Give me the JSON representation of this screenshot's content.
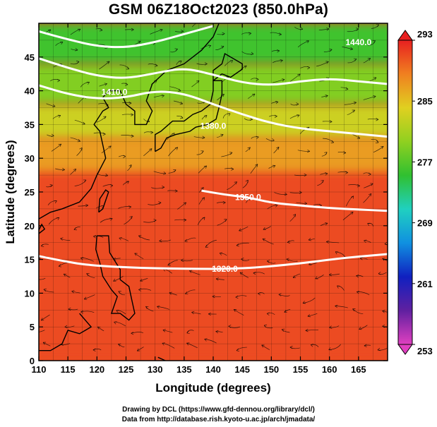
{
  "title": "GSM 06Z18Oct2023 (850.0hPa)",
  "credits": {
    "line1": "Drawing by DCL (https://www.gfd-dennou.org/library/dcl/)",
    "line2": "Data from http://database.rish.kyoto-u.ac.jp/arch/jmadata/"
  },
  "chart_data": {
    "type": "heatmap",
    "xlabel": "Longitude (degrees)",
    "ylabel": "Latitude  (degrees)",
    "xlim": [
      110,
      170
    ],
    "ylim": [
      0,
      50
    ],
    "x_ticks": [
      "110",
      "115",
      "120",
      "125",
      "130",
      "135",
      "140",
      "145",
      "150",
      "155",
      "160",
      "165"
    ],
    "y_ticks": [
      "0",
      "5",
      "10",
      "15",
      "20",
      "25",
      "30",
      "35",
      "40",
      "45"
    ],
    "colorbar": {
      "min": 253,
      "max": 293,
      "tick_labels": [
        "253",
        "261",
        "269",
        "277",
        "285",
        "293"
      ],
      "colors": [
        "#e040c0",
        "#6020a0",
        "#1020c0",
        "#1090e0",
        "#20d0c0",
        "#30c030",
        "#90d020",
        "#e0d020",
        "#f08020",
        "#e82020"
      ]
    },
    "temperature_bands": [
      {
        "lat_from": 0,
        "lat_to": 28,
        "value_k": 291
      },
      {
        "lat_from": 28,
        "lat_to": 33,
        "value_k": 287
      },
      {
        "lat_from": 33,
        "lat_to": 38,
        "value_k": 283
      },
      {
        "lat_from": 38,
        "lat_to": 44,
        "value_k": 279
      },
      {
        "lat_from": 44,
        "lat_to": 50,
        "value_k": 276
      }
    ],
    "contours": [
      {
        "label": "1320.0",
        "label_lon": 142,
        "label_lat": 13.6,
        "points": [
          [
            110,
            15.5
          ],
          [
            114,
            14.8
          ],
          [
            118,
            14.2
          ],
          [
            125,
            13.8
          ],
          [
            135,
            13.6
          ],
          [
            145,
            13.6
          ],
          [
            155,
            14.4
          ],
          [
            162,
            15.2
          ],
          [
            170,
            15.8
          ]
        ]
      },
      {
        "label": "1350.0",
        "label_lon": 146,
        "label_lat": 24.2,
        "points": [
          [
            138,
            25.2
          ],
          [
            142,
            24.6
          ],
          [
            146,
            24.2
          ],
          [
            150,
            23.4
          ],
          [
            155,
            23.0
          ],
          [
            160,
            22.6
          ],
          [
            165,
            22.4
          ],
          [
            170,
            22.2
          ]
        ]
      },
      {
        "label": "1380.0",
        "label_lon": 140,
        "label_lat": 34.8,
        "points": [
          [
            110,
            40.8
          ],
          [
            115,
            39.5
          ],
          [
            120,
            38.8
          ],
          [
            125,
            39.0
          ],
          [
            130,
            40.0
          ],
          [
            135,
            39.6
          ],
          [
            140,
            38.0
          ],
          [
            145,
            36.5
          ],
          [
            150,
            35.2
          ],
          [
            155,
            34.4
          ],
          [
            160,
            34.0
          ],
          [
            165,
            33.6
          ],
          [
            170,
            33.2
          ]
        ]
      },
      {
        "label": "1410.0",
        "label_lon": 123,
        "label_lat": 39.8,
        "points": [
          [
            110,
            44.8
          ],
          [
            115,
            43.4
          ],
          [
            120,
            42.2
          ],
          [
            125,
            41.8
          ],
          [
            130,
            42.6
          ],
          [
            135,
            43.4
          ],
          [
            140,
            42.4
          ],
          [
            145,
            41.2
          ],
          [
            150,
            40.8
          ],
          [
            155,
            41.4
          ],
          [
            160,
            41.8
          ],
          [
            165,
            41.4
          ],
          [
            170,
            41.0
          ]
        ]
      },
      {
        "label": "1440.0",
        "label_lon": 165,
        "label_lat": 47.2,
        "points": [
          [
            110,
            48.8
          ],
          [
            115,
            47.6
          ],
          [
            120,
            46.6
          ],
          [
            125,
            46.4
          ],
          [
            130,
            47.2
          ],
          [
            135,
            48.4
          ],
          [
            140,
            49.6
          ]
        ]
      }
    ]
  }
}
